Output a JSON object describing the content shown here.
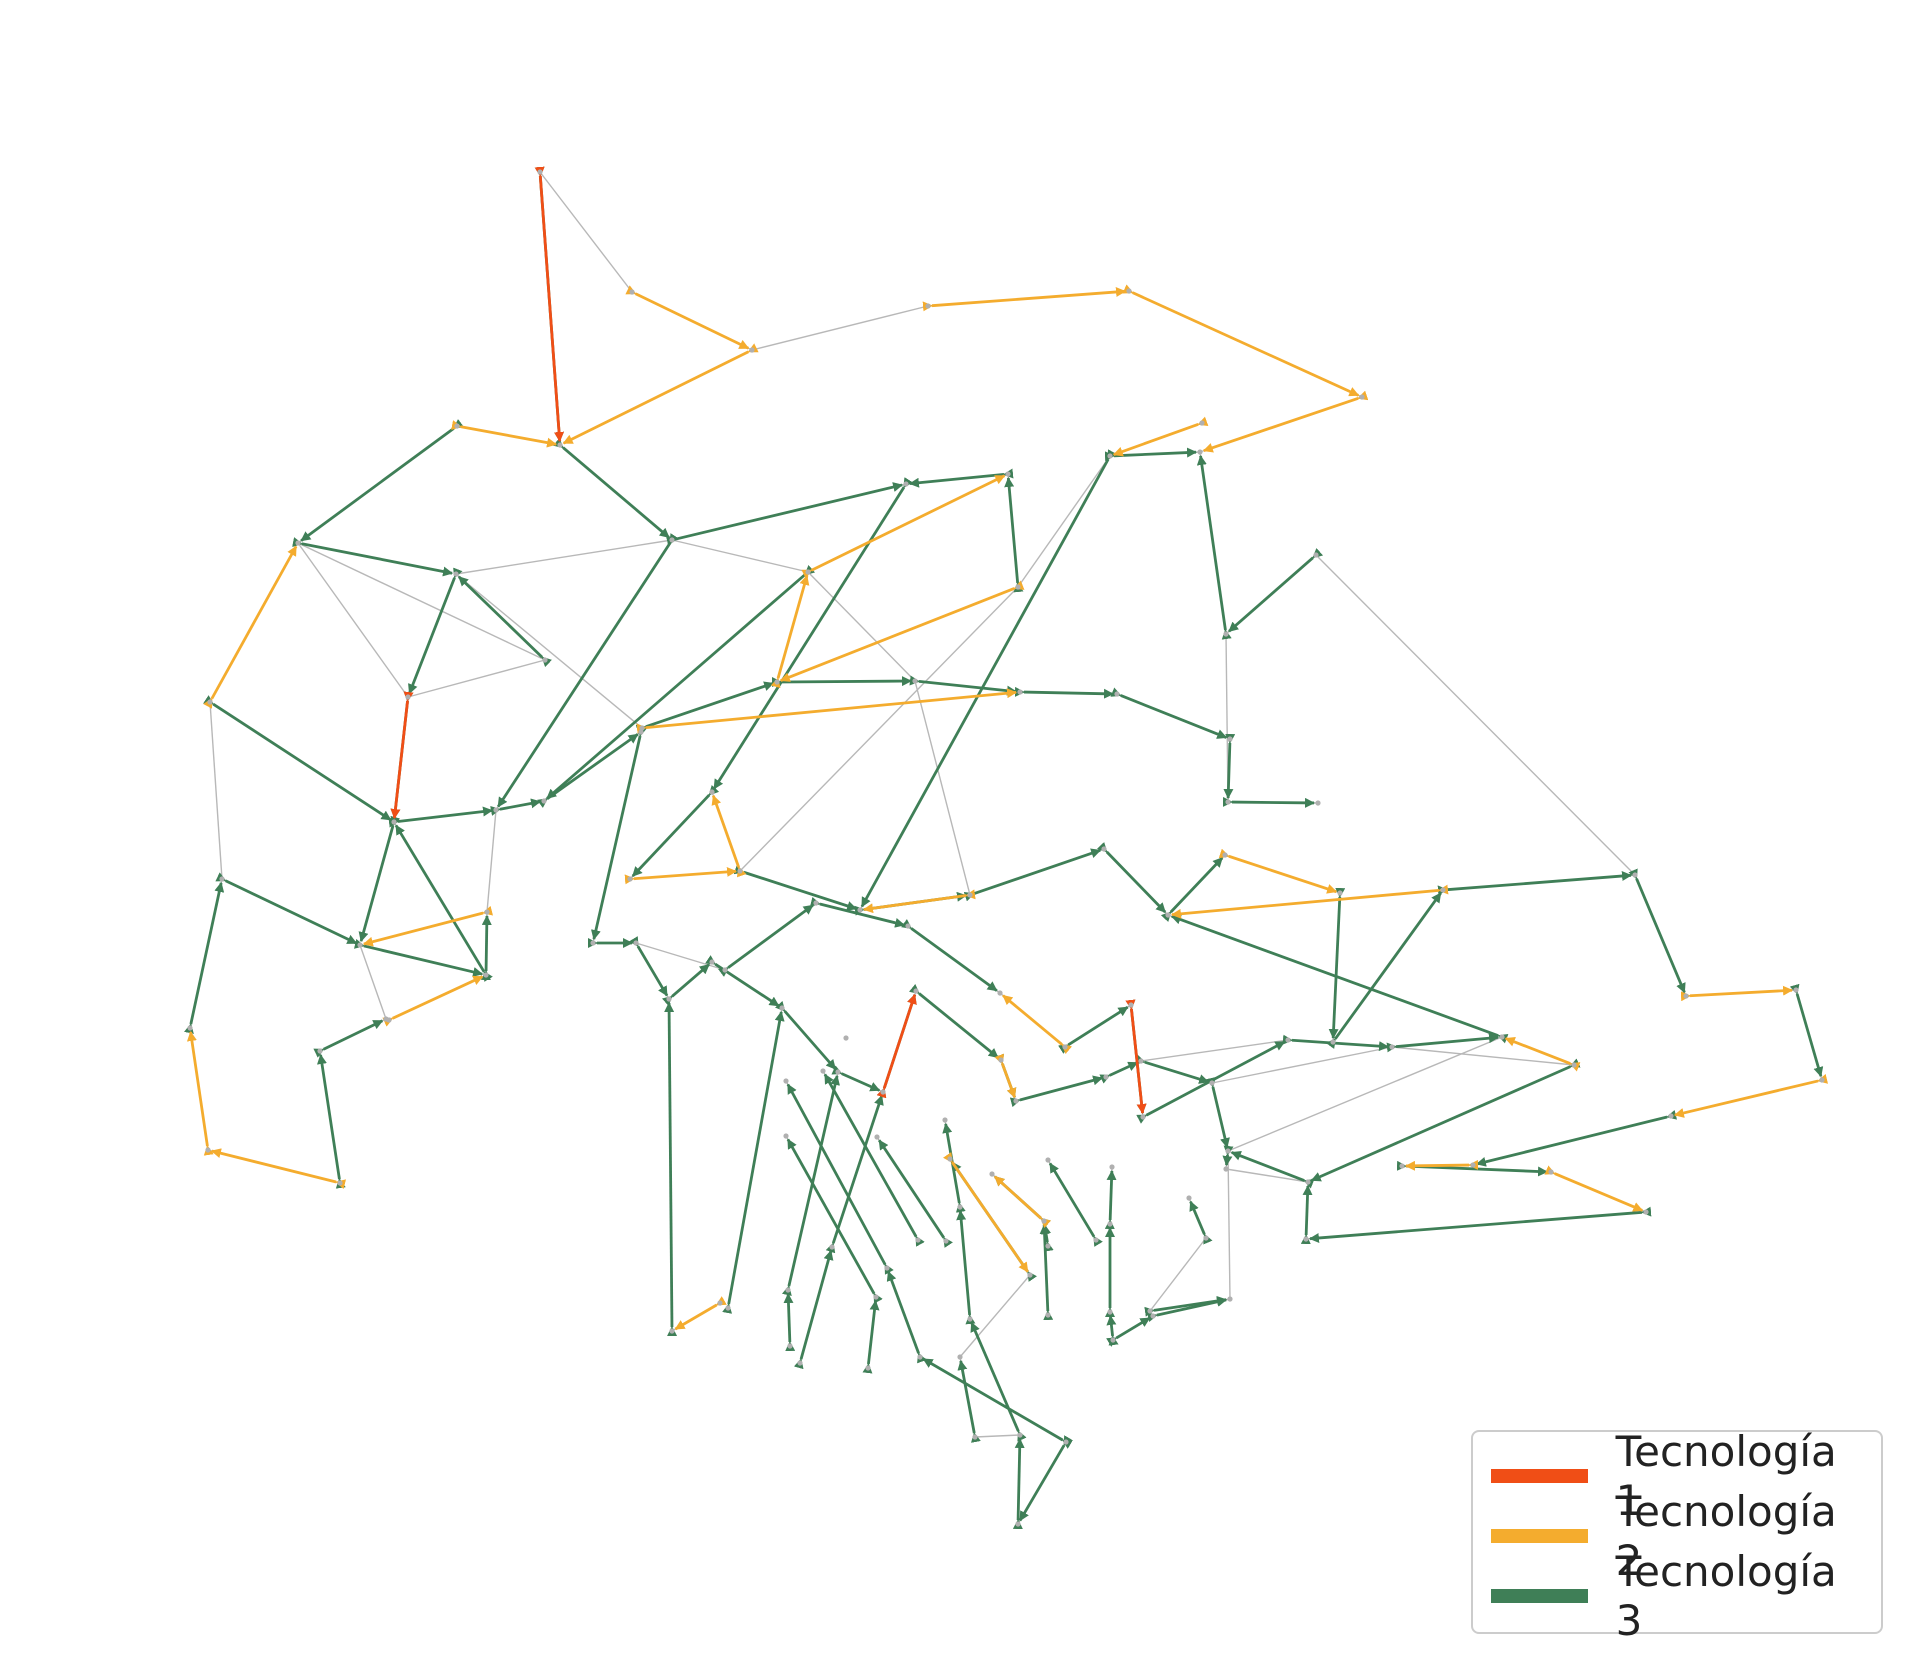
{
  "legend": {
    "items": [
      {
        "label": "Tecnología 1",
        "color": "#f04e16"
      },
      {
        "label": "Tecnología 2",
        "color": "#f4ac2e"
      },
      {
        "label": "Tecnología 3",
        "color": "#3f7f57"
      }
    ]
  },
  "colors": {
    "base_edge": "#b8b8b8",
    "node": "#b0b0b0"
  }
}
